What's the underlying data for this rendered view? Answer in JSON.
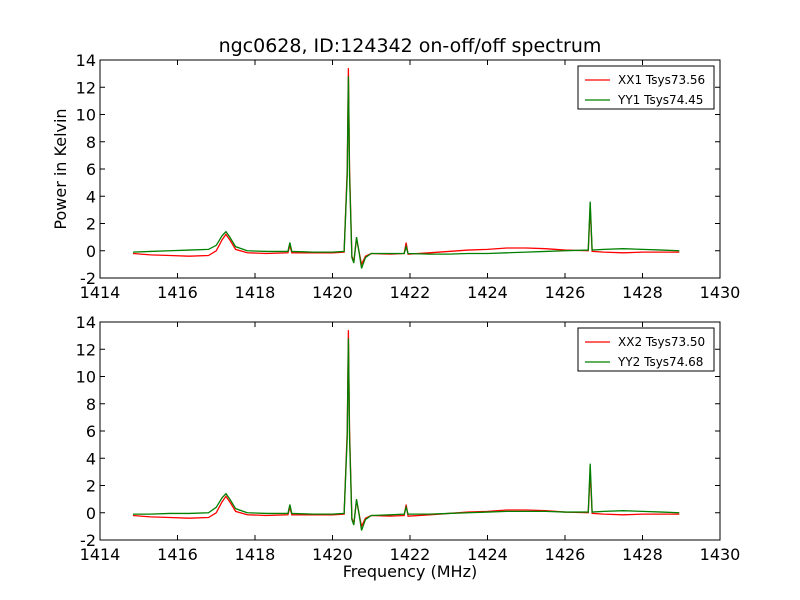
{
  "chart_data": {
    "type": "line",
    "title": "ngc0628, ID:124342 on-off/off spectrum",
    "xlabel": "Frequency (MHz)",
    "ylabel": "Power in Kelvin",
    "xlim": [
      1414,
      1430
    ],
    "ylim": [
      -2,
      14
    ],
    "xticks": [
      1414,
      1416,
      1418,
      1420,
      1422,
      1424,
      1426,
      1428,
      1430
    ],
    "yticks": [
      -2,
      0,
      2,
      4,
      6,
      8,
      10,
      12,
      14
    ],
    "grid": false,
    "legend_position": "top-right",
    "panels": [
      {
        "series": [
          {
            "name": "XX1 Tsys73.56",
            "color": "#ff0000",
            "points": [
              [
                1414.85,
                -0.2
              ],
              [
                1415.3,
                -0.3
              ],
              [
                1415.8,
                -0.35
              ],
              [
                1416.3,
                -0.4
              ],
              [
                1416.8,
                -0.35
              ],
              [
                1417.0,
                0.0
              ],
              [
                1417.15,
                0.8
              ],
              [
                1417.25,
                1.2
              ],
              [
                1417.35,
                0.8
              ],
              [
                1417.5,
                0.1
              ],
              [
                1417.8,
                -0.15
              ],
              [
                1418.3,
                -0.2
              ],
              [
                1418.85,
                -0.15
              ],
              [
                1418.9,
                0.4
              ],
              [
                1418.95,
                -0.15
              ],
              [
                1419.5,
                -0.15
              ],
              [
                1420.0,
                -0.15
              ],
              [
                1420.3,
                -0.1
              ],
              [
                1420.38,
                6.0
              ],
              [
                1420.41,
                13.4
              ],
              [
                1420.44,
                6.0
              ],
              [
                1420.5,
                -0.4
              ],
              [
                1420.55,
                -0.8
              ],
              [
                1420.62,
                0.9
              ],
              [
                1420.68,
                0.0
              ],
              [
                1420.75,
                -1.0
              ],
              [
                1420.85,
                -0.4
              ],
              [
                1421.0,
                -0.2
              ],
              [
                1421.5,
                -0.25
              ],
              [
                1421.85,
                -0.2
              ],
              [
                1421.9,
                0.6
              ],
              [
                1421.95,
                -0.25
              ],
              [
                1422.5,
                -0.15
              ],
              [
                1423.0,
                -0.05
              ],
              [
                1423.5,
                0.05
              ],
              [
                1424.0,
                0.1
              ],
              [
                1424.5,
                0.2
              ],
              [
                1425.0,
                0.2
              ],
              [
                1425.5,
                0.15
              ],
              [
                1426.0,
                0.05
              ],
              [
                1426.6,
                0.0
              ],
              [
                1426.65,
                3.2
              ],
              [
                1426.7,
                -0.05
              ],
              [
                1427.0,
                -0.1
              ],
              [
                1427.5,
                -0.15
              ],
              [
                1428.0,
                -0.1
              ],
              [
                1428.5,
                -0.1
              ],
              [
                1428.95,
                -0.1
              ]
            ]
          },
          {
            "name": "YY1 Tsys74.45",
            "color": "#008000",
            "points": [
              [
                1414.85,
                -0.1
              ],
              [
                1415.3,
                -0.05
              ],
              [
                1415.8,
                0.0
              ],
              [
                1416.3,
                0.05
              ],
              [
                1416.8,
                0.1
              ],
              [
                1417.0,
                0.4
              ],
              [
                1417.15,
                1.1
              ],
              [
                1417.25,
                1.4
              ],
              [
                1417.35,
                1.0
              ],
              [
                1417.5,
                0.3
              ],
              [
                1417.8,
                0.0
              ],
              [
                1418.3,
                -0.05
              ],
              [
                1418.85,
                -0.05
              ],
              [
                1418.9,
                0.6
              ],
              [
                1418.95,
                -0.05
              ],
              [
                1419.5,
                -0.1
              ],
              [
                1420.0,
                -0.1
              ],
              [
                1420.3,
                -0.05
              ],
              [
                1420.38,
                5.5
              ],
              [
                1420.41,
                12.8
              ],
              [
                1420.44,
                5.5
              ],
              [
                1420.5,
                -0.5
              ],
              [
                1420.55,
                -0.9
              ],
              [
                1420.62,
                1.0
              ],
              [
                1420.68,
                0.0
              ],
              [
                1420.75,
                -1.3
              ],
              [
                1420.85,
                -0.5
              ],
              [
                1421.0,
                -0.2
              ],
              [
                1421.5,
                -0.2
              ],
              [
                1421.85,
                -0.2
              ],
              [
                1421.9,
                0.3
              ],
              [
                1421.95,
                -0.2
              ],
              [
                1422.5,
                -0.25
              ],
              [
                1423.0,
                -0.25
              ],
              [
                1423.5,
                -0.2
              ],
              [
                1424.0,
                -0.2
              ],
              [
                1424.5,
                -0.15
              ],
              [
                1425.0,
                -0.1
              ],
              [
                1425.5,
                -0.05
              ],
              [
                1426.0,
                0.0
              ],
              [
                1426.6,
                0.05
              ],
              [
                1426.65,
                3.6
              ],
              [
                1426.7,
                0.05
              ],
              [
                1427.0,
                0.1
              ],
              [
                1427.5,
                0.15
              ],
              [
                1428.0,
                0.1
              ],
              [
                1428.5,
                0.05
              ],
              [
                1428.95,
                0.0
              ]
            ]
          }
        ]
      },
      {
        "series": [
          {
            "name": "XX2 Tsys73.50",
            "color": "#ff0000",
            "points": [
              [
                1414.85,
                -0.2
              ],
              [
                1415.3,
                -0.3
              ],
              [
                1415.8,
                -0.35
              ],
              [
                1416.3,
                -0.4
              ],
              [
                1416.8,
                -0.35
              ],
              [
                1417.0,
                0.0
              ],
              [
                1417.15,
                0.8
              ],
              [
                1417.25,
                1.2
              ],
              [
                1417.35,
                0.8
              ],
              [
                1417.5,
                0.1
              ],
              [
                1417.8,
                -0.15
              ],
              [
                1418.3,
                -0.2
              ],
              [
                1418.85,
                -0.15
              ],
              [
                1418.9,
                0.4
              ],
              [
                1418.95,
                -0.15
              ],
              [
                1419.5,
                -0.15
              ],
              [
                1420.0,
                -0.15
              ],
              [
                1420.3,
                -0.1
              ],
              [
                1420.38,
                6.0
              ],
              [
                1420.41,
                13.4
              ],
              [
                1420.44,
                6.0
              ],
              [
                1420.5,
                -0.4
              ],
              [
                1420.55,
                -0.8
              ],
              [
                1420.62,
                0.9
              ],
              [
                1420.68,
                0.0
              ],
              [
                1420.75,
                -1.0
              ],
              [
                1420.85,
                -0.4
              ],
              [
                1421.0,
                -0.2
              ],
              [
                1421.5,
                -0.25
              ],
              [
                1421.85,
                -0.2
              ],
              [
                1421.9,
                0.6
              ],
              [
                1421.95,
                -0.25
              ],
              [
                1422.5,
                -0.15
              ],
              [
                1423.0,
                -0.05
              ],
              [
                1423.5,
                0.05
              ],
              [
                1424.0,
                0.1
              ],
              [
                1424.5,
                0.2
              ],
              [
                1425.0,
                0.2
              ],
              [
                1425.5,
                0.15
              ],
              [
                1426.0,
                0.05
              ],
              [
                1426.6,
                0.0
              ],
              [
                1426.65,
                3.0
              ],
              [
                1426.7,
                -0.05
              ],
              [
                1427.0,
                -0.1
              ],
              [
                1427.5,
                -0.15
              ],
              [
                1428.0,
                -0.1
              ],
              [
                1428.5,
                -0.1
              ],
              [
                1428.95,
                -0.1
              ]
            ]
          },
          {
            "name": "YY2 Tsys74.68",
            "color": "#008000",
            "points": [
              [
                1414.85,
                -0.1
              ],
              [
                1415.3,
                -0.1
              ],
              [
                1415.8,
                -0.05
              ],
              [
                1416.3,
                -0.05
              ],
              [
                1416.8,
                0.0
              ],
              [
                1417.0,
                0.4
              ],
              [
                1417.15,
                1.1
              ],
              [
                1417.25,
                1.4
              ],
              [
                1417.35,
                1.0
              ],
              [
                1417.5,
                0.3
              ],
              [
                1417.8,
                0.0
              ],
              [
                1418.3,
                -0.05
              ],
              [
                1418.85,
                -0.05
              ],
              [
                1418.9,
                0.6
              ],
              [
                1418.95,
                -0.05
              ],
              [
                1419.5,
                -0.1
              ],
              [
                1420.0,
                -0.1
              ],
              [
                1420.3,
                -0.05
              ],
              [
                1420.38,
                5.5
              ],
              [
                1420.41,
                12.8
              ],
              [
                1420.44,
                5.5
              ],
              [
                1420.5,
                -0.5
              ],
              [
                1420.55,
                -0.9
              ],
              [
                1420.62,
                1.0
              ],
              [
                1420.68,
                0.0
              ],
              [
                1420.75,
                -1.3
              ],
              [
                1420.85,
                -0.5
              ],
              [
                1421.0,
                -0.2
              ],
              [
                1421.5,
                -0.15
              ],
              [
                1421.85,
                -0.1
              ],
              [
                1421.9,
                0.4
              ],
              [
                1421.95,
                -0.1
              ],
              [
                1422.5,
                -0.1
              ],
              [
                1423.0,
                -0.05
              ],
              [
                1423.5,
                0.0
              ],
              [
                1424.0,
                0.05
              ],
              [
                1424.5,
                0.1
              ],
              [
                1425.0,
                0.1
              ],
              [
                1425.5,
                0.1
              ],
              [
                1426.0,
                0.05
              ],
              [
                1426.6,
                0.05
              ],
              [
                1426.65,
                3.6
              ],
              [
                1426.7,
                0.05
              ],
              [
                1427.0,
                0.1
              ],
              [
                1427.5,
                0.15
              ],
              [
                1428.0,
                0.1
              ],
              [
                1428.5,
                0.05
              ],
              [
                1428.95,
                0.0
              ]
            ]
          }
        ]
      }
    ]
  }
}
